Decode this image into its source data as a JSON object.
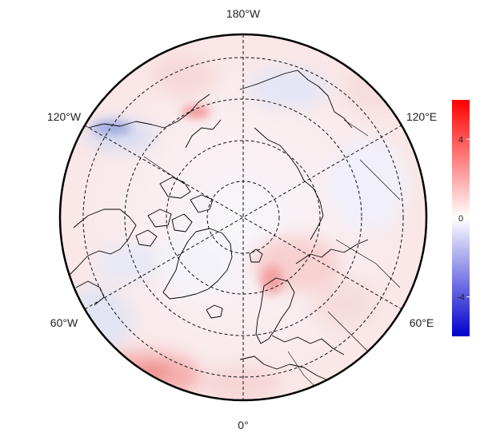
{
  "map": {
    "projection": "north polar stereographic",
    "longitude_labels": [
      {
        "key": "top",
        "text": "180°W"
      },
      {
        "key": "bottom",
        "text": "0°"
      },
      {
        "key": "upper_left",
        "text": "120°W"
      },
      {
        "key": "upper_right",
        "text": "120°E"
      },
      {
        "key": "lower_left",
        "text": "60°W"
      },
      {
        "key": "lower_right",
        "text": "60°E"
      }
    ],
    "field_description": "anomaly field shaded blue-white-red"
  },
  "colorbar": {
    "min": -6,
    "max": 6,
    "ticks": [
      {
        "value": 4,
        "text": "4"
      },
      {
        "value": 0,
        "text": "0"
      },
      {
        "value": -4,
        "text": "-4"
      }
    ],
    "colors": {
      "low": "#0000cc",
      "mid": "#ffffff",
      "high": "#ff0000"
    }
  }
}
